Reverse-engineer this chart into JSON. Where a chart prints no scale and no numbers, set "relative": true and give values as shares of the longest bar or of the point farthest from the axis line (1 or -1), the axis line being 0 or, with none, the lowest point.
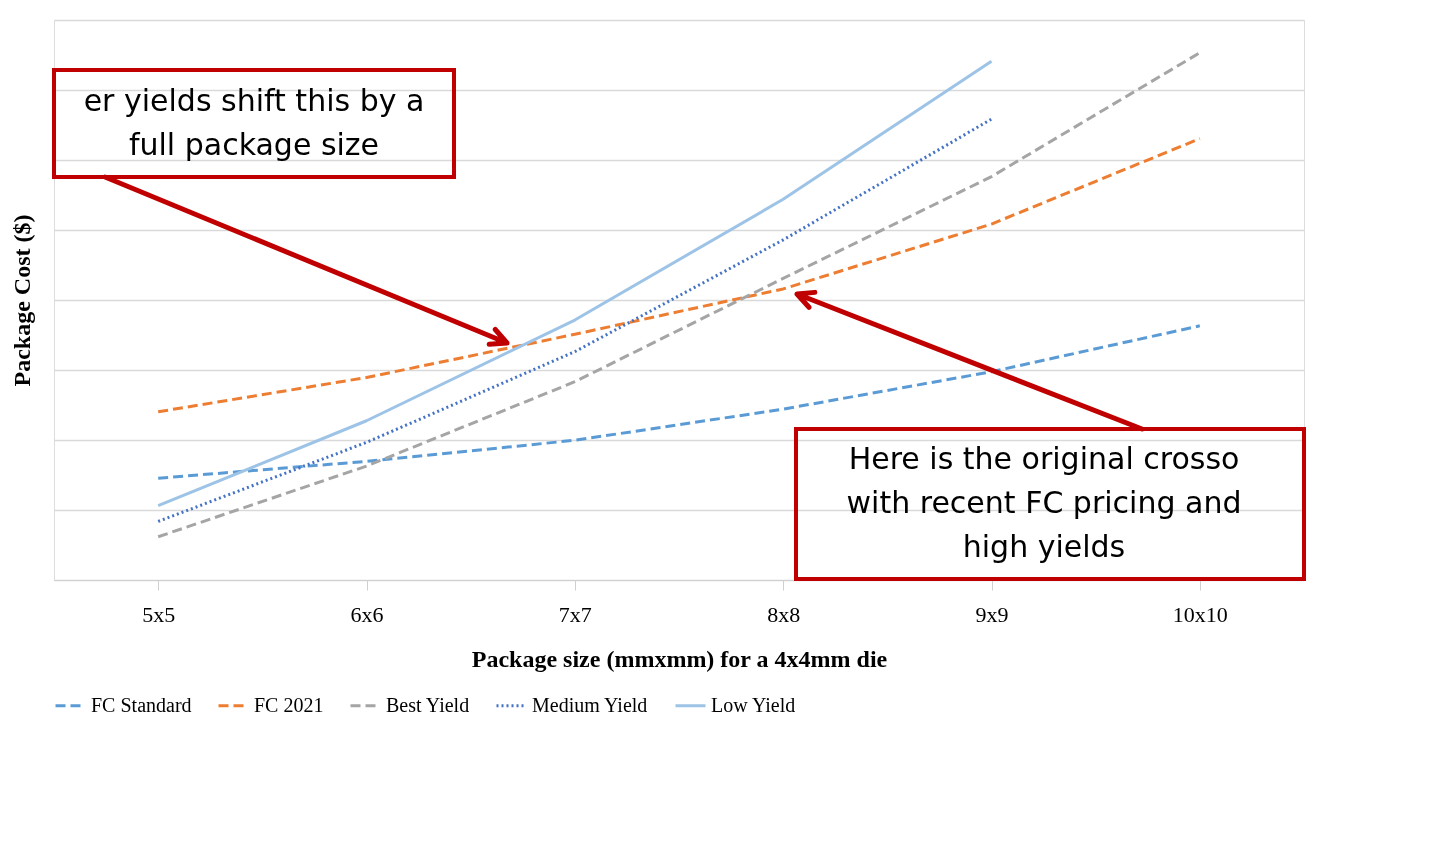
{
  "chart_data": {
    "type": "line",
    "relative": true,
    "xlabel": "Package size (mmxmm) for a 4x4mm die",
    "ylabel": "Package Cost ($)",
    "categories": [
      "5x5",
      "6x6",
      "7x7",
      "8x8",
      "9x9",
      "10x10"
    ],
    "series": [
      {
        "name": "FC Standard",
        "color": "#5b9bd5",
        "line_style": "dashed",
        "values": [
          0.193,
          0.225,
          0.265,
          0.324,
          0.395,
          0.482
        ]
      },
      {
        "name": "FC 2021",
        "color": "#ed7d31",
        "line_style": "dashed",
        "values": [
          0.319,
          0.384,
          0.466,
          0.552,
          0.675,
          0.837
        ]
      },
      {
        "name": "Best Yield",
        "color": "#a5a5a5",
        "line_style": "dashed",
        "values": [
          0.082,
          0.216,
          0.376,
          0.572,
          0.765,
          1
        ]
      },
      {
        "name": "Medium Yield",
        "color": "#4472c4",
        "line_style": "dotted",
        "values": [
          0.111,
          0.261,
          0.433,
          0.645,
          0.874,
          null
        ]
      },
      {
        "name": "Low Yield",
        "color": "#9dc3e6",
        "line_style": "solid",
        "values": [
          0.141,
          0.302,
          0.493,
          0.722,
          0.984,
          null
        ]
      }
    ],
    "annotations": [
      "er yields shift this by a\nfull package size",
      "Here is the original crosso\nwith recent FC pricing and\nhigh yields"
    ],
    "grid": "y",
    "legend": "bottom"
  }
}
